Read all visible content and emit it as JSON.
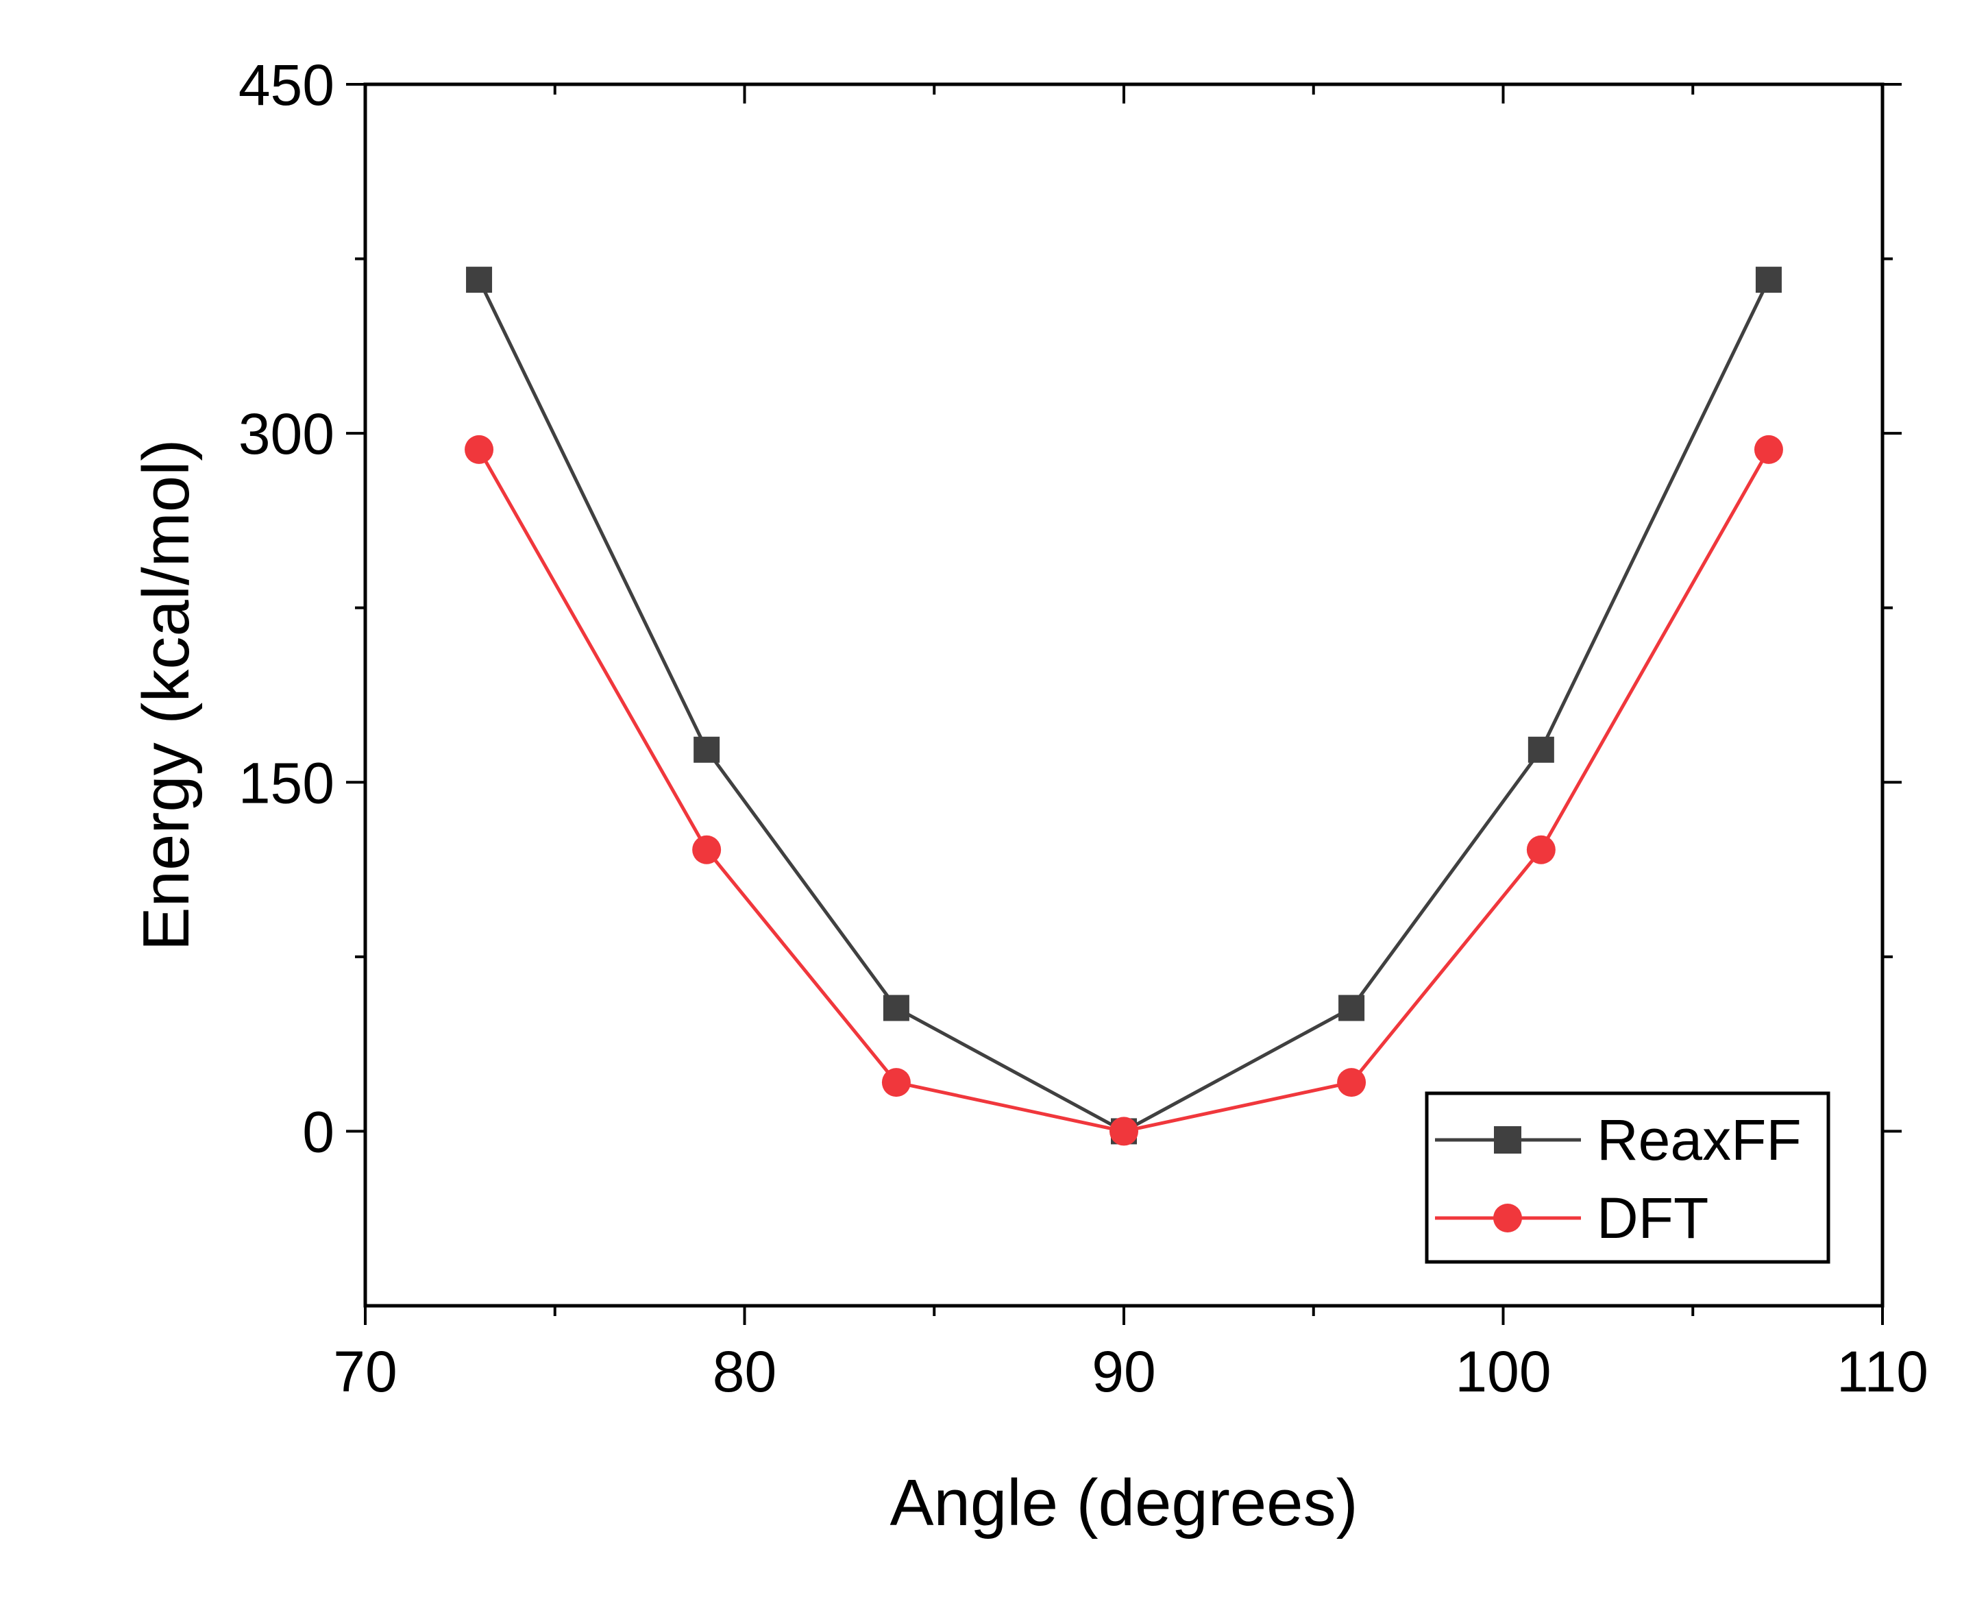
{
  "chart_data": {
    "type": "line",
    "title": "",
    "xlabel": "Angle (degrees)",
    "ylabel": "Energy (kcal/mol)",
    "xlim": [
      70,
      110
    ],
    "ylim": [
      -75,
      450
    ],
    "xticks": [
      70,
      80,
      90,
      100,
      110
    ],
    "xticks_minor": [
      75,
      85,
      95,
      105
    ],
    "yticks": [
      0,
      150,
      300,
      450
    ],
    "yticks_minor": [
      75,
      225,
      375
    ],
    "xtick_labels": [
      "70",
      "80",
      "90",
      "100",
      "110"
    ],
    "ytick_labels": [
      "0",
      "150",
      "300",
      "450"
    ],
    "grid": false,
    "legend_position": "bottom-right",
    "series": [
      {
        "name": "ReaxFF",
        "marker": "square",
        "color": "#404040",
        "x": [
          73,
          79,
          84,
          90,
          96,
          101,
          107
        ],
        "y": [
          366,
          164,
          53,
          0,
          53,
          164,
          366
        ]
      },
      {
        "name": "DFT",
        "marker": "circle",
        "color": "#f0373c",
        "x": [
          73,
          79,
          84,
          90,
          96,
          101,
          107
        ],
        "y": [
          293,
          121,
          21,
          0,
          21,
          121,
          293
        ]
      }
    ]
  }
}
